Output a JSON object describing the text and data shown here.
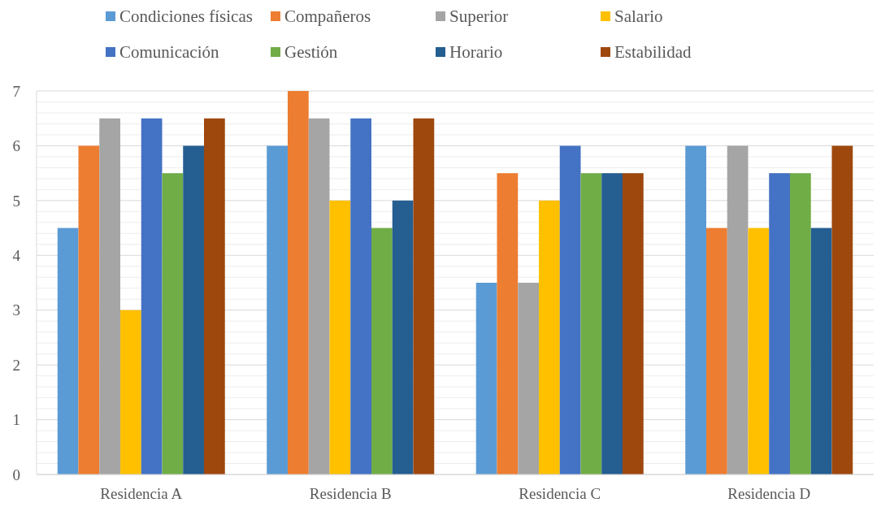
{
  "chart_data": {
    "type": "bar",
    "categories": [
      "Residencia A",
      "Residencia B",
      "Residencia C",
      "Residencia D"
    ],
    "series": [
      {
        "name": "Condiciones físicas",
        "color": "#5b9bd5",
        "values": [
          4.5,
          6,
          3.5,
          6
        ]
      },
      {
        "name": "Compañeros",
        "color": "#ed7d31",
        "values": [
          6,
          7,
          5.5,
          4.5
        ]
      },
      {
        "name": "Superior",
        "color": "#a5a5a5",
        "values": [
          6.5,
          6.5,
          3.5,
          6
        ]
      },
      {
        "name": "Salario",
        "color": "#ffc000",
        "values": [
          3,
          5,
          5,
          4.5
        ]
      },
      {
        "name": "Comunicación",
        "color": "#4472c4",
        "values": [
          6.5,
          6.5,
          6,
          5.5
        ]
      },
      {
        "name": "Gestión",
        "color": "#70ad47",
        "values": [
          5.5,
          4.5,
          5.5,
          5.5
        ]
      },
      {
        "name": "Horario",
        "color": "#255e91",
        "values": [
          6,
          5,
          5.5,
          4.5
        ]
      },
      {
        "name": "Estabilidad",
        "color": "#9e480e",
        "values": [
          6.5,
          6.5,
          5.5,
          6
        ]
      }
    ],
    "ylim": [
      0,
      7
    ],
    "yticks": [
      0,
      {
        "value": 0.2,
        "label": null
      },
      {
        "value": 0.4,
        "label": null
      },
      {
        "value": 0.6,
        "label": null
      },
      {
        "value": 0.8,
        "label": null
      },
      1,
      {
        "value": 1.2,
        "label": null
      },
      {
        "value": 1.4,
        "label": null
      },
      {
        "value": 1.6,
        "label": null
      },
      {
        "value": 1.8,
        "label": null
      },
      2,
      {
        "value": 2.2,
        "label": null
      },
      {
        "value": 2.4,
        "label": null
      },
      {
        "value": 2.6,
        "label": null
      },
      {
        "value": 2.8,
        "label": null
      },
      3,
      {
        "value": 3.2,
        "label": null
      },
      {
        "value": 3.4,
        "label": null
      },
      {
        "value": 3.6,
        "label": null
      },
      {
        "value": 3.8,
        "label": null
      },
      4,
      {
        "value": 4.2,
        "label": null
      },
      {
        "value": 4.4,
        "label": null
      },
      {
        "value": 4.6,
        "label": null
      },
      {
        "value": 4.8,
        "label": null
      },
      5,
      {
        "value": 5.2,
        "label": null
      },
      {
        "value": 5.4,
        "label": null
      },
      {
        "value": 5.6,
        "label": null
      },
      {
        "value": 5.8,
        "label": null
      },
      6,
      {
        "value": 6.2,
        "label": null
      },
      {
        "value": 6.4,
        "label": null
      },
      {
        "value": 6.6,
        "label": null
      },
      {
        "value": 6.8,
        "label": null
      },
      7
    ],
    "grid": "y",
    "legend": "top"
  }
}
